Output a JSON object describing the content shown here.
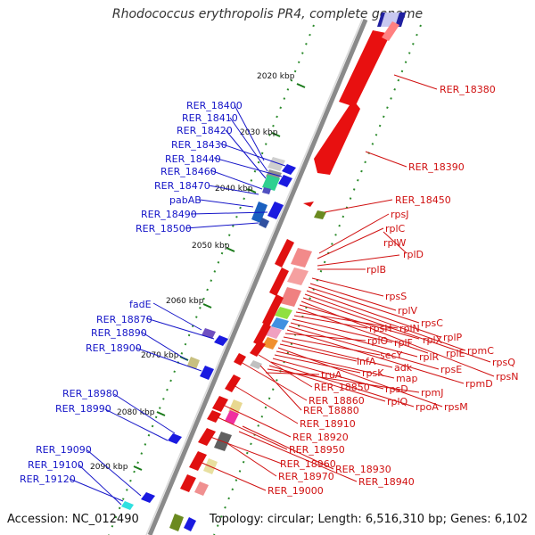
{
  "title": "Rhodococcus erythropolis PR4, complete genome",
  "accession": "Accession: NC_012490",
  "topology": "Topology: circular; Length: 6,516,310 bp; Genes: 6,102",
  "colors": {
    "forward": "#1010e0",
    "reverse": "#e01010",
    "backbone": "#888888",
    "ticks": "#228822"
  },
  "kbp_labels": [
    "2020 kbp",
    "2030 kbp",
    "2040 kbp",
    "2050 kbp",
    "2060 kbp",
    "2070 kbp",
    "2080 kbp",
    "2090 kbp"
  ],
  "left_labels": [
    "RER_18400",
    "RER_18410",
    "RER_18420",
    "RER_18430",
    "RER_18440",
    "RER_18460",
    "RER_18470",
    "pabAB",
    "RER_18490",
    "RER_18500",
    "fadE",
    "RER_18870",
    "RER_18890",
    "RER_18900",
    "RER_18980",
    "RER_18990",
    "RER_19090",
    "RER_19100",
    "RER_19120"
  ],
  "right_labels": [
    "RER_18380",
    "RER_18390",
    "RER_18450",
    "rpsJ",
    "rplC",
    "rplW",
    "rplD",
    "rplB",
    "rpsS",
    "rplV",
    "rpsC",
    "rplP",
    "rpmC",
    "rpsQ",
    "rplN",
    "rplX",
    "rplE",
    "rpsN",
    "rpsH",
    "rplF",
    "rplR",
    "rpsE",
    "rpmD",
    "rplO",
    "secY",
    "adk",
    "infA",
    "rpsM",
    "map",
    "rpsK",
    "rpsD",
    "rpoA",
    "rplQ",
    "rpmJ",
    "truA",
    "RER_18850",
    "RER_18860",
    "RER_18880",
    "RER_18910",
    "RER_18920",
    "RER_18950",
    "RER_18960",
    "RER_18930",
    "RER_18970",
    "RER_18940",
    "RER_19000"
  ]
}
